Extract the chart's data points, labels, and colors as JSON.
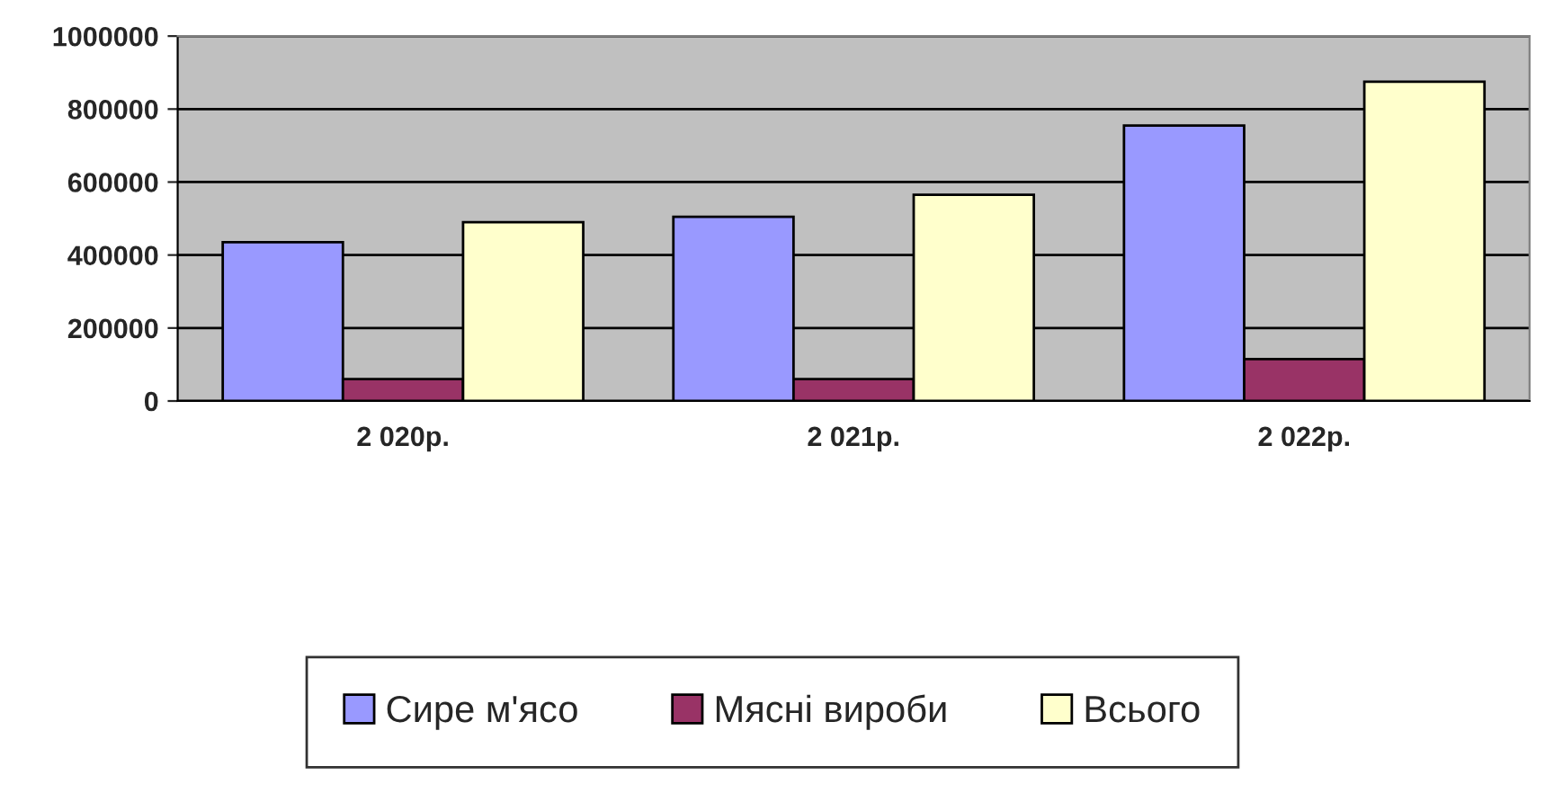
{
  "chart_data": {
    "type": "bar",
    "categories": [
      "2 020р.",
      "2 021р.",
      "2 022р."
    ],
    "series": [
      {
        "name": "Сире м'ясо",
        "color": "#9999ff",
        "values": [
          435000,
          505000,
          755000
        ]
      },
      {
        "name": "Мясні вироби",
        "color": "#993366",
        "values": [
          60000,
          60000,
          115000
        ]
      },
      {
        "name": "Всього",
        "color": "#ffffcc",
        "values": [
          490000,
          565000,
          875000
        ]
      }
    ],
    "ylim": [
      0,
      1000000
    ],
    "yticks": [
      0,
      200000,
      400000,
      600000,
      800000,
      1000000
    ],
    "grid": "y",
    "legend": "bottom"
  }
}
